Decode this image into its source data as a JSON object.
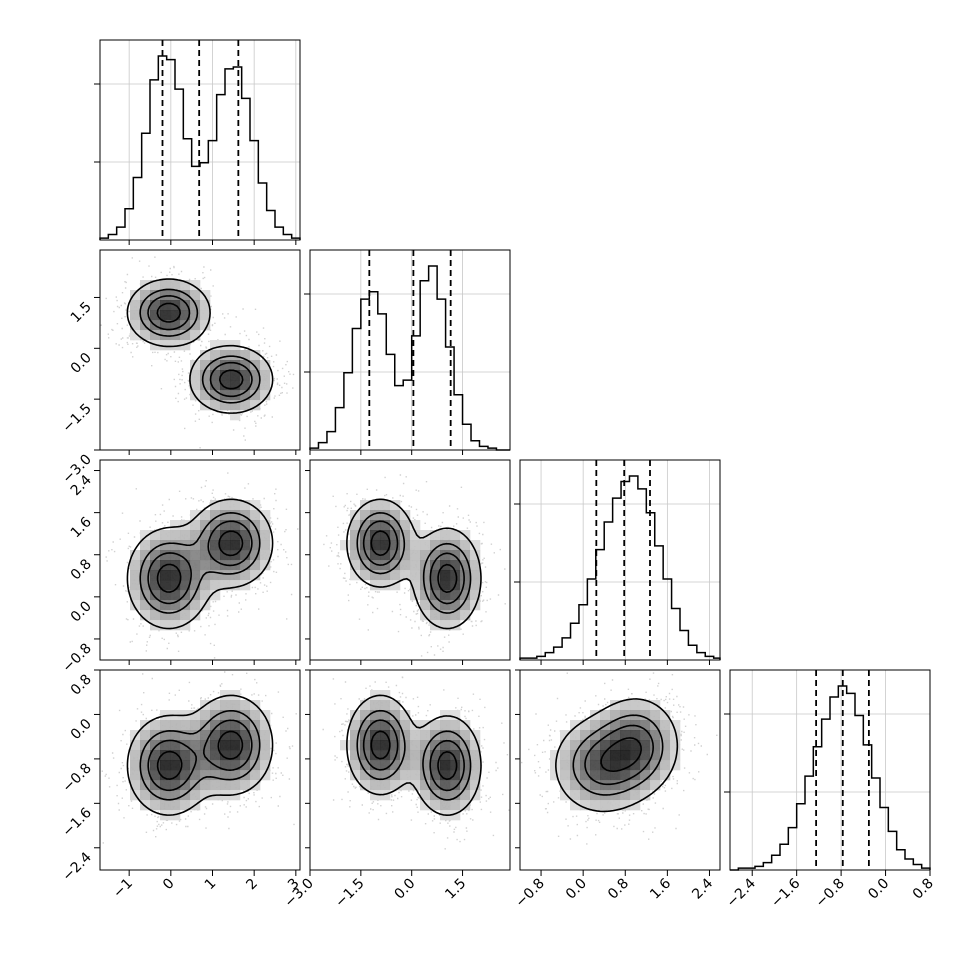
{
  "figure": {
    "type": "corner plot"
  },
  "chart_data": {
    "type": "corner",
    "dimensions": [
      {
        "ticks": [
          -1,
          0,
          1,
          2,
          3
        ],
        "tick_labels": [
          "−1",
          "0",
          "1",
          "2",
          "3"
        ],
        "range": [
          -1.7,
          3.1
        ],
        "quantiles": [
          -0.2,
          0.68,
          1.62
        ]
      },
      {
        "ticks": [
          -3.0,
          -1.5,
          0.0,
          1.5
        ],
        "tick_labels": [
          "−3.0",
          "−1.5",
          "0.0",
          "1.5"
        ],
        "range": [
          -3.0,
          2.9
        ],
        "quantiles": [
          -1.25,
          0.05,
          1.15
        ]
      },
      {
        "ticks": [
          -0.8,
          0.0,
          0.8,
          1.6,
          2.4
        ],
        "tick_labels": [
          "−0.8",
          "0.0",
          "0.8",
          "1.6",
          "2.4"
        ],
        "range": [
          -1.2,
          2.6
        ],
        "quantiles": [
          0.25,
          0.78,
          1.27
        ]
      },
      {
        "ticks": [
          -2.4,
          -1.6,
          -0.8,
          0.0,
          0.8
        ],
        "tick_labels": [
          "−2.4",
          "−1.6",
          "−0.8",
          "0.0",
          "0.8"
        ],
        "range": [
          -2.8,
          0.8
        ],
        "quantiles": [
          -1.25,
          -0.77,
          -0.3
        ]
      }
    ],
    "histograms": [
      {
        "bin_width": 0.2,
        "start": -1.7,
        "values": [
          0.01,
          0.03,
          0.07,
          0.17,
          0.34,
          0.58,
          0.87,
          1.0,
          0.98,
          0.82,
          0.55,
          0.4,
          0.42,
          0.54,
          0.79,
          0.93,
          0.94,
          0.77,
          0.54,
          0.31,
          0.16,
          0.07,
          0.03,
          0.01
        ]
      },
      {
        "bin_width": 0.25,
        "start": -3.0,
        "values": [
          0.01,
          0.04,
          0.1,
          0.23,
          0.42,
          0.66,
          0.82,
          0.86,
          0.74,
          0.52,
          0.35,
          0.38,
          0.62,
          0.92,
          1.0,
          0.82,
          0.56,
          0.3,
          0.14,
          0.05,
          0.02,
          0.01,
          0.0,
          0.0
        ]
      },
      {
        "bin_width": 0.16,
        "start": -1.2,
        "values": [
          0.01,
          0.01,
          0.02,
          0.04,
          0.07,
          0.12,
          0.2,
          0.3,
          0.44,
          0.6,
          0.75,
          0.88,
          0.97,
          1.0,
          0.93,
          0.8,
          0.62,
          0.44,
          0.28,
          0.16,
          0.08,
          0.04,
          0.02,
          0.01
        ]
      },
      {
        "bin_width": 0.15,
        "start": -2.8,
        "values": [
          0.0,
          0.01,
          0.01,
          0.02,
          0.04,
          0.08,
          0.14,
          0.23,
          0.36,
          0.51,
          0.67,
          0.82,
          0.94,
          1.0,
          0.96,
          0.84,
          0.68,
          0.5,
          0.34,
          0.21,
          0.11,
          0.06,
          0.03,
          0.01
        ]
      }
    ],
    "mixture": [
      {
        "weight": 0.5,
        "mean": [
          -0.05,
          1.05,
          0.35,
          -0.92
        ],
        "sd": [
          0.5,
          0.5,
          0.48,
          0.45
        ]
      },
      {
        "weight": 0.5,
        "mean": [
          1.45,
          -0.92,
          1.02,
          -0.55
        ],
        "sd": [
          0.5,
          0.5,
          0.42,
          0.45
        ]
      }
    ],
    "grid": true
  }
}
